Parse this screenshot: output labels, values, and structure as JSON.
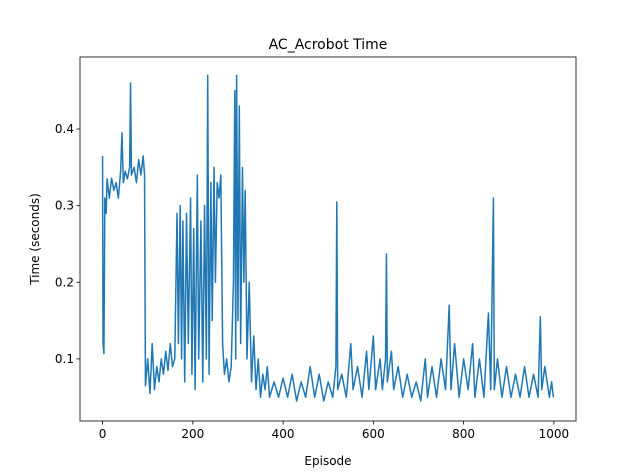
{
  "chart_data": {
    "type": "line",
    "title": "AC_Acrobot Time",
    "x_label": "Episode",
    "y_label": "Time (seconds)",
    "xlim": [
      -50,
      1049
    ],
    "ylim": [
      0.019,
      0.494
    ],
    "xticks": [
      0,
      200,
      400,
      600,
      800,
      1000
    ],
    "yticks": [
      0.1,
      0.2,
      0.3,
      0.4
    ],
    "series": [
      {
        "color": "#1f77b4",
        "x": [
          0,
          1,
          3,
          5,
          8,
          10,
          15,
          20,
          25,
          30,
          35,
          40,
          43,
          46,
          50,
          55,
          60,
          62,
          64,
          70,
          75,
          80,
          85,
          90,
          93,
          95,
          100,
          105,
          110,
          115,
          120,
          125,
          130,
          135,
          140,
          145,
          150,
          155,
          160,
          165,
          168,
          172,
          175,
          178,
          182,
          186,
          190,
          195,
          198,
          202,
          205,
          210,
          213,
          218,
          222,
          226,
          230,
          233,
          236,
          240,
          243,
          247,
          250,
          254,
          258,
          262,
          266,
          270,
          275,
          280,
          285,
          290,
          293,
          295,
          297,
          300,
          303,
          306,
          310,
          313,
          316,
          320,
          325,
          330,
          335,
          340,
          345,
          350,
          355,
          360,
          365,
          370,
          380,
          390,
          400,
          410,
          420,
          430,
          440,
          450,
          460,
          470,
          480,
          490,
          500,
          510,
          517,
          519,
          521,
          530,
          540,
          550,
          555,
          565,
          575,
          585,
          590,
          600,
          605,
          615,
          620,
          627,
          629,
          631,
          640,
          645,
          655,
          665,
          675,
          685,
          695,
          705,
          715,
          720,
          730,
          740,
          750,
          760,
          768,
          772,
          780,
          790,
          800,
          810,
          820,
          825,
          835,
          845,
          855,
          860,
          866,
          868,
          875,
          885,
          895,
          905,
          915,
          925,
          935,
          945,
          955,
          965,
          970,
          973,
          980,
          990,
          995,
          999
        ],
        "values": [
          0.365,
          0.12,
          0.107,
          0.31,
          0.29,
          0.335,
          0.31,
          0.336,
          0.32,
          0.33,
          0.31,
          0.345,
          0.395,
          0.33,
          0.345,
          0.335,
          0.35,
          0.46,
          0.34,
          0.35,
          0.33,
          0.36,
          0.34,
          0.365,
          0.34,
          0.065,
          0.1,
          0.055,
          0.12,
          0.06,
          0.09,
          0.07,
          0.1,
          0.08,
          0.11,
          0.085,
          0.12,
          0.09,
          0.1,
          0.29,
          0.12,
          0.3,
          0.1,
          0.28,
          0.07,
          0.29,
          0.12,
          0.31,
          0.08,
          0.27,
          0.06,
          0.34,
          0.1,
          0.28,
          0.07,
          0.3,
          0.1,
          0.47,
          0.08,
          0.33,
          0.15,
          0.35,
          0.2,
          0.33,
          0.31,
          0.34,
          0.12,
          0.08,
          0.1,
          0.07,
          0.09,
          0.2,
          0.45,
          0.1,
          0.47,
          0.15,
          0.43,
          0.12,
          0.35,
          0.2,
          0.32,
          0.1,
          0.2,
          0.07,
          0.13,
          0.06,
          0.1,
          0.05,
          0.08,
          0.06,
          0.09,
          0.05,
          0.07,
          0.05,
          0.075,
          0.05,
          0.08,
          0.045,
          0.07,
          0.05,
          0.09,
          0.05,
          0.08,
          0.045,
          0.07,
          0.05,
          0.09,
          0.305,
          0.06,
          0.08,
          0.05,
          0.12,
          0.06,
          0.09,
          0.05,
          0.11,
          0.06,
          0.13,
          0.06,
          0.1,
          0.06,
          0.1,
          0.237,
          0.07,
          0.11,
          0.06,
          0.09,
          0.05,
          0.08,
          0.05,
          0.07,
          0.045,
          0.1,
          0.05,
          0.09,
          0.05,
          0.1,
          0.06,
          0.17,
          0.06,
          0.12,
          0.05,
          0.1,
          0.06,
          0.12,
          0.05,
          0.1,
          0.05,
          0.16,
          0.06,
          0.31,
          0.06,
          0.1,
          0.05,
          0.09,
          0.05,
          0.08,
          0.05,
          0.09,
          0.05,
          0.08,
          0.05,
          0.155,
          0.06,
          0.09,
          0.05,
          0.07,
          0.05
        ]
      }
    ]
  }
}
